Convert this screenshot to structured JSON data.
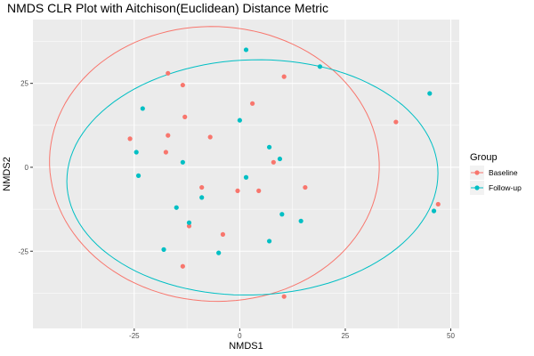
{
  "chart_data": {
    "type": "scatter",
    "title": "NMDS CLR Plot with Aitchison(Euclidean) Distance Metric",
    "xlabel": "NMDS1",
    "ylabel": "NMDS2",
    "xlim": [
      -49,
      52
    ],
    "ylim": [
      -48,
      44
    ],
    "xticks": [
      -25,
      0,
      25,
      50
    ],
    "yticks": [
      -25,
      0,
      25
    ],
    "xtick_labels": [
      "-25",
      "0",
      "25",
      "50"
    ],
    "ytick_labels": [
      "-25",
      "0",
      "25"
    ],
    "grid": true,
    "legend": {
      "title": "Group",
      "position": "right"
    },
    "series": [
      {
        "name": "Baseline",
        "color": "#F8766D",
        "points": [
          [
            -17,
            28
          ],
          [
            -13.5,
            24.5
          ],
          [
            -13,
            15
          ],
          [
            -17,
            9.5
          ],
          [
            -26,
            8.5
          ],
          [
            -17.5,
            4.5
          ],
          [
            -7,
            9
          ],
          [
            -9,
            -6
          ],
          [
            -12,
            -17.5
          ],
          [
            -13.5,
            -29.5
          ],
          [
            -4,
            -20
          ],
          [
            -0.5,
            -7
          ],
          [
            4.5,
            -7
          ],
          [
            8,
            1.5
          ],
          [
            15.5,
            -6
          ],
          [
            10.5,
            27
          ],
          [
            3,
            19
          ],
          [
            37,
            13.5
          ],
          [
            47,
            -11
          ],
          [
            10.5,
            -38.5
          ]
        ],
        "ellipse": {
          "cx": -6,
          "cy": 1,
          "a": 39,
          "b": 41,
          "angle_deg": 10
        }
      },
      {
        "name": "Follow-up",
        "color": "#00BFC4",
        "points": [
          [
            1.5,
            35
          ],
          [
            19,
            30
          ],
          [
            45,
            22
          ],
          [
            -23,
            17.5
          ],
          [
            0,
            14
          ],
          [
            -24.5,
            4.5
          ],
          [
            -13.5,
            1.5
          ],
          [
            -24,
            -2.5
          ],
          [
            7,
            6
          ],
          [
            9.5,
            2.5
          ],
          [
            1.5,
            -3
          ],
          [
            -9,
            -9
          ],
          [
            -15,
            -12
          ],
          [
            10,
            -14
          ],
          [
            14.5,
            -16
          ],
          [
            -12,
            -16.5
          ],
          [
            7,
            -22
          ],
          [
            -18,
            -24.5
          ],
          [
            -5,
            -25.5
          ],
          [
            46,
            -13
          ]
        ],
        "ellipse": {
          "cx": 3,
          "cy": -3,
          "a": 44,
          "b": 35,
          "angle_deg": 4
        }
      }
    ]
  }
}
